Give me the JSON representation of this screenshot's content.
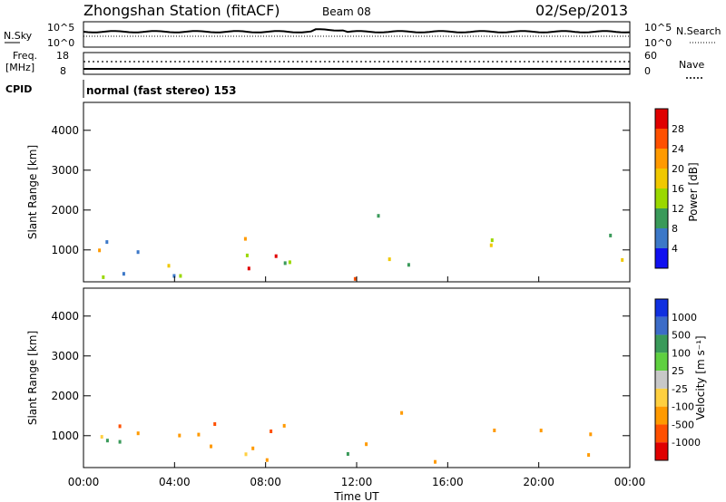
{
  "header": {
    "title": "Zhongshan Station (fitACF)",
    "beam": "Beam 08",
    "date": "02/Sep/2013"
  },
  "noise_panel": {
    "left_label": "N.Sky",
    "right_label": "N.Search",
    "ticks_left": [
      "10^5",
      "10^0"
    ],
    "ticks_right": [
      "10^5",
      "10^0"
    ]
  },
  "freq_panel": {
    "left_label": "Freq.",
    "left_unit": "[MHz]",
    "right_label": "Nave",
    "ticks_left": [
      "18",
      "8"
    ],
    "ticks_right": [
      "60",
      "0"
    ]
  },
  "cpid": {
    "label": "CPID",
    "text": "normal (fast stereo) 153"
  },
  "chart_data": [
    {
      "type": "heatmap",
      "name": "power",
      "ylabel": "Slant Range [km]",
      "yticks": [
        "4000",
        "3000",
        "2000",
        "1000"
      ],
      "ylim": [
        200,
        4700
      ],
      "xlim": [
        0,
        24
      ],
      "colorbar": {
        "label": "Power [dB]",
        "ticks": [
          "28",
          "24",
          "20",
          "16",
          "12",
          "8",
          "4"
        ],
        "colors": [
          "#e00000",
          "#ff5000",
          "#ff9a00",
          "#f0c800",
          "#9ad800",
          "#3a9a5a",
          "#3c78c8",
          "#1010f0"
        ]
      },
      "bands": [
        {
          "t0": 0.0,
          "t1": 3.2,
          "r0": 300,
          "r1": 1500,
          "level": "mid"
        },
        {
          "t0": 0.4,
          "t1": 2.8,
          "r0": 700,
          "r1": 1150,
          "level": "high"
        },
        {
          "t0": 3.3,
          "t1": 9.5,
          "r0": 300,
          "r1": 1350,
          "level": "mid"
        },
        {
          "t0": 5.5,
          "t1": 9.8,
          "r0": 450,
          "r1": 900,
          "level": "high"
        },
        {
          "t0": 9.8,
          "t1": 12.2,
          "r0": 300,
          "r1": 700,
          "level": "high"
        },
        {
          "t0": 12.2,
          "t1": 14.0,
          "r0": 800,
          "r1": 2000,
          "level": "mid"
        },
        {
          "t0": 14.0,
          "t1": 16.5,
          "r0": 300,
          "r1": 800,
          "level": "mid"
        },
        {
          "t0": 17.5,
          "t1": 20.8,
          "r0": 900,
          "r1": 1400,
          "level": "mid"
        },
        {
          "t0": 22.0,
          "t1": 24.0,
          "r0": 400,
          "r1": 1500,
          "level": "mid"
        }
      ]
    },
    {
      "type": "heatmap",
      "name": "velocity",
      "ylabel": "Slant Range [km]",
      "yticks": [
        "4000",
        "3000",
        "2000",
        "1000"
      ],
      "ylim": [
        200,
        4700
      ],
      "xlim": [
        0,
        24
      ],
      "xlabel": "Time UT",
      "xticks": [
        "00:00",
        "04:00",
        "08:00",
        "12:00",
        "16:00",
        "20:00",
        "00:00"
      ],
      "colorbar": {
        "label": "Velocity [m s⁻¹]",
        "ticks": [
          "1000",
          "500",
          "100",
          "25",
          "-25",
          "-100",
          "-500",
          "-1000"
        ],
        "colors": [
          "#1030e0",
          "#3c6cc8",
          "#3a9a5a",
          "#5fd040",
          "#c8c8c8",
          "#ffd040",
          "#ff9a00",
          "#ff5000",
          "#e00000"
        ]
      }
    }
  ]
}
